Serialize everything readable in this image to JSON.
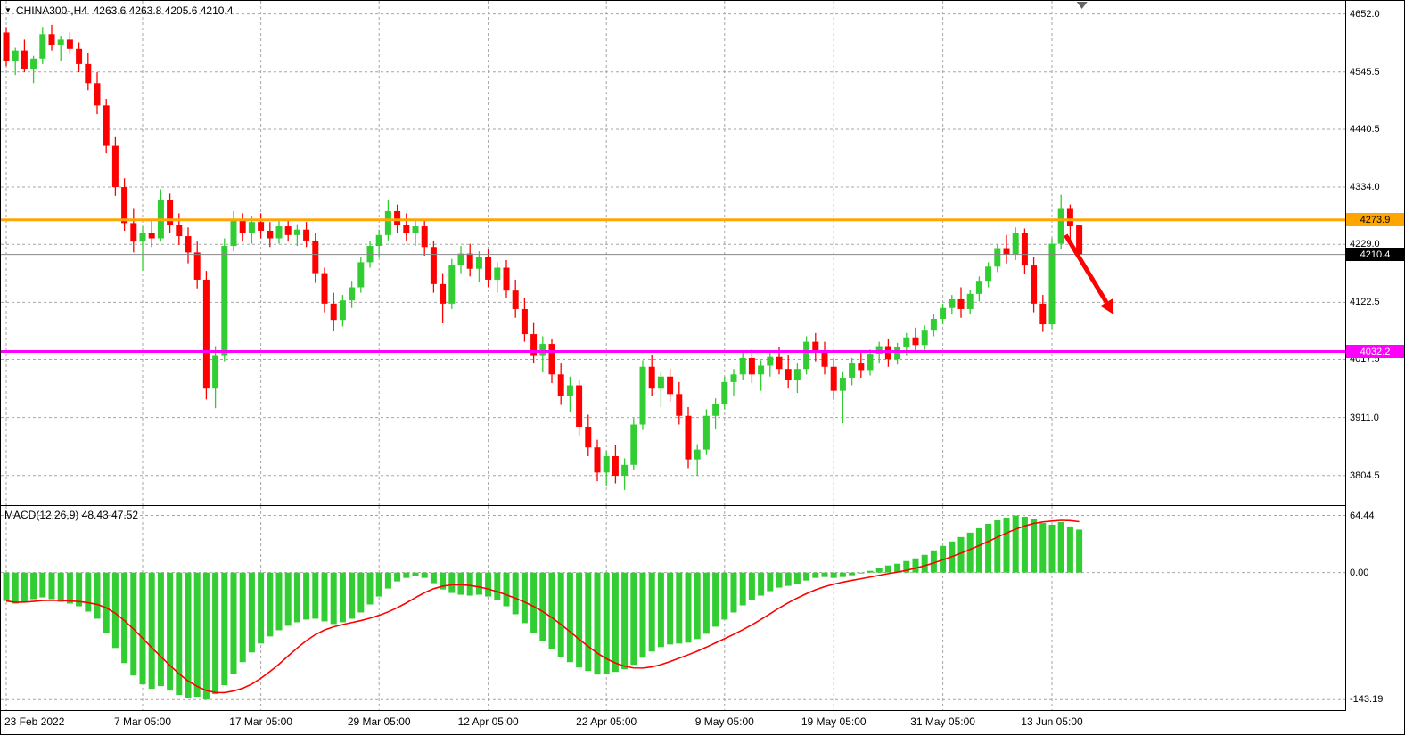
{
  "header": {
    "symbol_ohlc": "CHINA300-,H4  4263.6 4263.8 4205.6 4210.4"
  },
  "chart_data": [
    {
      "type": "candlestick",
      "symbol": "CHINA300-",
      "timeframe": "H4",
      "last_ohlc": {
        "open": 4263.6,
        "high": 4263.8,
        "low": 4205.6,
        "close": 4210.4
      },
      "ylim": [
        3750,
        4676
      ],
      "y_ticks": [
        "4652.0",
        "4545.5",
        "4440.5",
        "4334.0",
        "4229.0",
        "4122.5",
        "4017.5",
        "3911.0",
        "3804.5"
      ],
      "x_ticks": [
        {
          "index": 0,
          "label": "23 Feb 2022"
        },
        {
          "index": 15,
          "label": "7 Mar 05:00"
        },
        {
          "index": 28,
          "label": "17 Mar 05:00"
        },
        {
          "index": 41,
          "label": "29 Mar 05:00"
        },
        {
          "index": 53,
          "label": "12 Apr 05:00"
        },
        {
          "index": 66,
          "label": "22 Apr 05:00"
        },
        {
          "index": 79,
          "label": "9 May 05:00"
        },
        {
          "index": 91,
          "label": "19 May 05:00"
        },
        {
          "index": 103,
          "label": "31 May 05:00"
        },
        {
          "index": 115,
          "label": "13 Jun 05:00"
        }
      ],
      "hlines": [
        {
          "price": 4273.9,
          "label": "4273.9",
          "color": "#FFA500",
          "text_color": "#000000"
        },
        {
          "price": 4032.2,
          "label": "4032.2",
          "color": "#FF00FF",
          "text_color": "#FFFFFF"
        }
      ],
      "current_price": {
        "value": 4210.4,
        "label": "4210.4",
        "line_color": "#888888",
        "bg": "#000000",
        "text_color": "#FFFFFF"
      },
      "annotations": [
        {
          "type": "arrow",
          "color": "#FF0000",
          "from": {
            "index": 116.5,
            "price": 4246
          },
          "to": {
            "index": 121.8,
            "price": 4100
          }
        },
        {
          "type": "shift_marker",
          "index": 118.3,
          "color": "#666666"
        }
      ],
      "colors": {
        "bull": "#32CD32",
        "bear": "#FF0000",
        "grid": "#A6A6A6",
        "background": "#FFFFFF"
      },
      "ohlc": [
        [
          4618,
          4628,
          4556,
          4565
        ],
        [
          4565,
          4590,
          4540,
          4585
        ],
        [
          4585,
          4605,
          4545,
          4550
        ],
        [
          4550,
          4575,
          4525,
          4570
        ],
        [
          4570,
          4628,
          4560,
          4615
        ],
        [
          4615,
          4632,
          4585,
          4595
        ],
        [
          4595,
          4612,
          4565,
          4605
        ],
        [
          4605,
          4618,
          4578,
          4588
        ],
        [
          4588,
          4600,
          4545,
          4560
        ],
        [
          4560,
          4580,
          4512,
          4525
        ],
        [
          4525,
          4545,
          4468,
          4484
        ],
        [
          4484,
          4496,
          4396,
          4410
        ],
        [
          4410,
          4426,
          4318,
          4334
        ],
        [
          4334,
          4350,
          4254,
          4268
        ],
        [
          4268,
          4294,
          4214,
          4234
        ],
        [
          4234,
          4262,
          4180,
          4250
        ],
        [
          4250,
          4272,
          4224,
          4240
        ],
        [
          4240,
          4330,
          4234,
          4310
        ],
        [
          4310,
          4322,
          4250,
          4264
        ],
        [
          4264,
          4286,
          4228,
          4244
        ],
        [
          4244,
          4260,
          4194,
          4214
        ],
        [
          4214,
          4234,
          4148,
          4164
        ],
        [
          4164,
          4180,
          3944,
          3964
        ],
        [
          3964,
          4042,
          3928,
          4024
        ],
        [
          4024,
          4240,
          4014,
          4226
        ],
        [
          4226,
          4290,
          4216,
          4276
        ],
        [
          4276,
          4286,
          4234,
          4250
        ],
        [
          4250,
          4280,
          4230,
          4270
        ],
        [
          4270,
          4286,
          4240,
          4254
        ],
        [
          4254,
          4270,
          4224,
          4240
        ],
        [
          4240,
          4272,
          4230,
          4262
        ],
        [
          4262,
          4276,
          4234,
          4246
        ],
        [
          4246,
          4266,
          4226,
          4256
        ],
        [
          4256,
          4270,
          4224,
          4236
        ],
        [
          4236,
          4250,
          4158,
          4176
        ],
        [
          4176,
          4186,
          4104,
          4120
        ],
        [
          4120,
          4140,
          4070,
          4090
        ],
        [
          4090,
          4136,
          4078,
          4126
        ],
        [
          4126,
          4162,
          4112,
          4150
        ],
        [
          4150,
          4206,
          4140,
          4196
        ],
        [
          4196,
          4236,
          4186,
          4226
        ],
        [
          4226,
          4256,
          4206,
          4246
        ],
        [
          4246,
          4310,
          4236,
          4290
        ],
        [
          4290,
          4302,
          4250,
          4264
        ],
        [
          4264,
          4286,
          4236,
          4250
        ],
        [
          4250,
          4272,
          4226,
          4262
        ],
        [
          4262,
          4272,
          4208,
          4224
        ],
        [
          4224,
          4236,
          4140,
          4156
        ],
        [
          4156,
          4176,
          4084,
          4120
        ],
        [
          4120,
          4202,
          4110,
          4190
        ],
        [
          4190,
          4226,
          4176,
          4212
        ],
        [
          4212,
          4230,
          4170,
          4184
        ],
        [
          4184,
          4216,
          4160,
          4206
        ],
        [
          4206,
          4220,
          4150,
          4164
        ],
        [
          4164,
          4196,
          4140,
          4186
        ],
        [
          4186,
          4200,
          4130,
          4144
        ],
        [
          4144,
          4164,
          4094,
          4110
        ],
        [
          4110,
          4130,
          4050,
          4064
        ],
        [
          4064,
          4086,
          4010,
          4024
        ],
        [
          4024,
          4060,
          3994,
          4046
        ],
        [
          4046,
          4056,
          3974,
          3990
        ],
        [
          3990,
          4010,
          3934,
          3950
        ],
        [
          3950,
          3986,
          3920,
          3970
        ],
        [
          3970,
          3980,
          3878,
          3894
        ],
        [
          3894,
          3916,
          3840,
          3856
        ],
        [
          3856,
          3870,
          3794,
          3810
        ],
        [
          3810,
          3850,
          3786,
          3840
        ],
        [
          3840,
          3860,
          3790,
          3804
        ],
        [
          3804,
          3836,
          3778,
          3824
        ],
        [
          3824,
          3910,
          3814,
          3898
        ],
        [
          3898,
          4016,
          3888,
          4004
        ],
        [
          4004,
          4026,
          3950,
          3964
        ],
        [
          3964,
          3996,
          3930,
          3986
        ],
        [
          3986,
          4000,
          3940,
          3954
        ],
        [
          3954,
          3976,
          3898,
          3914
        ],
        [
          3914,
          3930,
          3818,
          3834
        ],
        [
          3834,
          3862,
          3804,
          3852
        ],
        [
          3852,
          3926,
          3842,
          3914
        ],
        [
          3914,
          3946,
          3890,
          3936
        ],
        [
          3936,
          3986,
          3926,
          3976
        ],
        [
          3976,
          4000,
          3950,
          3990
        ],
        [
          3990,
          4030,
          3980,
          4020
        ],
        [
          4020,
          4036,
          3974,
          3990
        ],
        [
          3990,
          4016,
          3960,
          4006
        ],
        [
          4006,
          4030,
          3986,
          4022
        ],
        [
          4022,
          4040,
          3990,
          4000
        ],
        [
          4000,
          4026,
          3964,
          3980
        ],
        [
          3980,
          4010,
          3956,
          4000
        ],
        [
          4000,
          4060,
          3990,
          4050
        ],
        [
          4050,
          4066,
          4014,
          4030
        ],
        [
          4030,
          4050,
          3990,
          4004
        ],
        [
          4004,
          4020,
          3944,
          3960
        ],
        [
          3960,
          3996,
          3900,
          3984
        ],
        [
          3984,
          4020,
          3970,
          4010
        ],
        [
          4010,
          4030,
          3984,
          3998
        ],
        [
          3998,
          4036,
          3988,
          4028
        ],
        [
          4028,
          4050,
          4010,
          4042
        ],
        [
          4042,
          4056,
          4004,
          4018
        ],
        [
          4018,
          4048,
          4008,
          4040
        ],
        [
          4040,
          4066,
          4024,
          4058
        ],
        [
          4058,
          4076,
          4030,
          4044
        ],
        [
          4044,
          4080,
          4034,
          4072
        ],
        [
          4072,
          4100,
          4060,
          4092
        ],
        [
          4092,
          4120,
          4082,
          4112
        ],
        [
          4112,
          4136,
          4100,
          4128
        ],
        [
          4128,
          4150,
          4094,
          4110
        ],
        [
          4110,
          4146,
          4100,
          4138
        ],
        [
          4138,
          4170,
          4124,
          4162
        ],
        [
          4162,
          4196,
          4150,
          4188
        ],
        [
          4188,
          4230,
          4178,
          4222
        ],
        [
          4222,
          4246,
          4194,
          4210
        ],
        [
          4210,
          4260,
          4200,
          4250
        ],
        [
          4250,
          4258,
          4174,
          4190
        ],
        [
          4190,
          4206,
          4104,
          4120
        ],
        [
          4120,
          4136,
          4068,
          4082
        ],
        [
          4082,
          4240,
          4074,
          4230
        ],
        [
          4230,
          4320,
          4220,
          4294
        ],
        [
          4294,
          4302,
          4238,
          4262
        ],
        [
          4263.6,
          4263.8,
          4205.6,
          4210.4
        ]
      ]
    },
    {
      "type": "macd",
      "label": "MACD(12,26,9) 48.43 47.52",
      "values": {
        "macd": 48.43,
        "signal": 47.52
      },
      "ylim": [
        -155,
        75
      ],
      "y_ticks": [
        "64.44",
        "0.00",
        "-143.19"
      ],
      "colors": {
        "histogram": "#32CD32",
        "signal": "#FF0000"
      },
      "histogram": [
        -32,
        -35,
        -33,
        -30,
        -28,
        -30,
        -33,
        -35,
        -38,
        -44,
        -52,
        -68,
        -85,
        -102,
        -116,
        -126,
        -131,
        -128,
        -133,
        -138,
        -141,
        -140,
        -143.19,
        -137,
        -127,
        -114,
        -101,
        -90,
        -80,
        -72,
        -65,
        -60,
        -56,
        -53,
        -52,
        -55,
        -58,
        -56,
        -52,
        -45,
        -36,
        -27,
        -18,
        -10,
        -6,
        -4,
        -6,
        -12,
        -19,
        -23,
        -25,
        -26,
        -25,
        -27,
        -31,
        -38,
        -47,
        -57,
        -68,
        -77,
        -86,
        -95,
        -101,
        -107,
        -111,
        -115,
        -114,
        -112,
        -109,
        -104,
        -96,
        -89,
        -84,
        -81,
        -80,
        -79,
        -75,
        -69,
        -61,
        -53,
        -45,
        -37,
        -31,
        -26,
        -21,
        -17,
        -15,
        -13,
        -9,
        -6,
        -5,
        -6,
        -5,
        -3,
        -1,
        2,
        5,
        8,
        10,
        13,
        16,
        20,
        25,
        30,
        35,
        40,
        45,
        50,
        55,
        59,
        62,
        64.44,
        63,
        60,
        56,
        54,
        57,
        52,
        48.43
      ]
    }
  ]
}
